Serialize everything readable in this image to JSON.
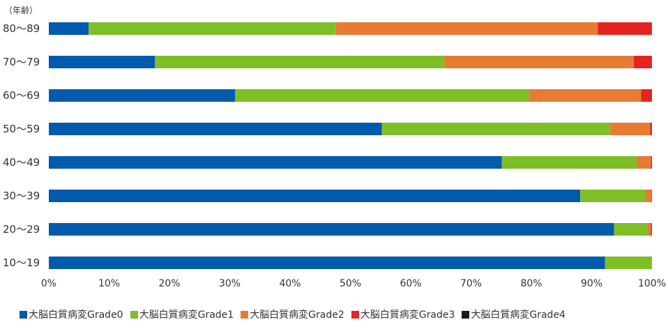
{
  "chart_data": {
    "type": "bar",
    "orientation": "horizontal",
    "stacked": true,
    "normalized": true,
    "y_unit_label": "（年齢）",
    "categories": [
      "80〜89",
      "70〜79",
      "60〜69",
      "50〜59",
      "40〜49",
      "30〜39",
      "20〜29",
      "10〜19"
    ],
    "series": [
      {
        "name": "大脳白質病変Grade0",
        "color": "#005bac",
        "values": [
          6.6,
          17.6,
          30.9,
          55.2,
          75.1,
          88.1,
          93.7,
          92.2
        ]
      },
      {
        "name": "大脳白質病変Grade1",
        "color": "#7fbf26",
        "values": [
          41.0,
          48.0,
          48.7,
          37.9,
          22.4,
          10.8,
          5.6,
          7.8
        ]
      },
      {
        "name": "大脳白質病変Grade2",
        "color": "#e87b34",
        "values": [
          43.4,
          31.4,
          18.6,
          6.6,
          2.3,
          1.0,
          0.5,
          0.0
        ]
      },
      {
        "name": "大脳白質病変Grade3",
        "color": "#e52421",
        "values": [
          9.0,
          3.0,
          1.8,
          0.3,
          0.2,
          0.1,
          0.2,
          0.0
        ]
      },
      {
        "name": "大脳白質病変Grade4",
        "color": "#231815",
        "values": [
          0,
          0,
          0,
          0,
          0,
          0,
          0,
          0
        ]
      }
    ],
    "x_ticks": [
      "0%",
      "10%",
      "20%",
      "30%",
      "40%",
      "50%",
      "60%",
      "70%",
      "80%",
      "90%",
      "100%"
    ],
    "xlim": [
      0,
      100
    ],
    "grid": false,
    "legend_position": "bottom"
  }
}
